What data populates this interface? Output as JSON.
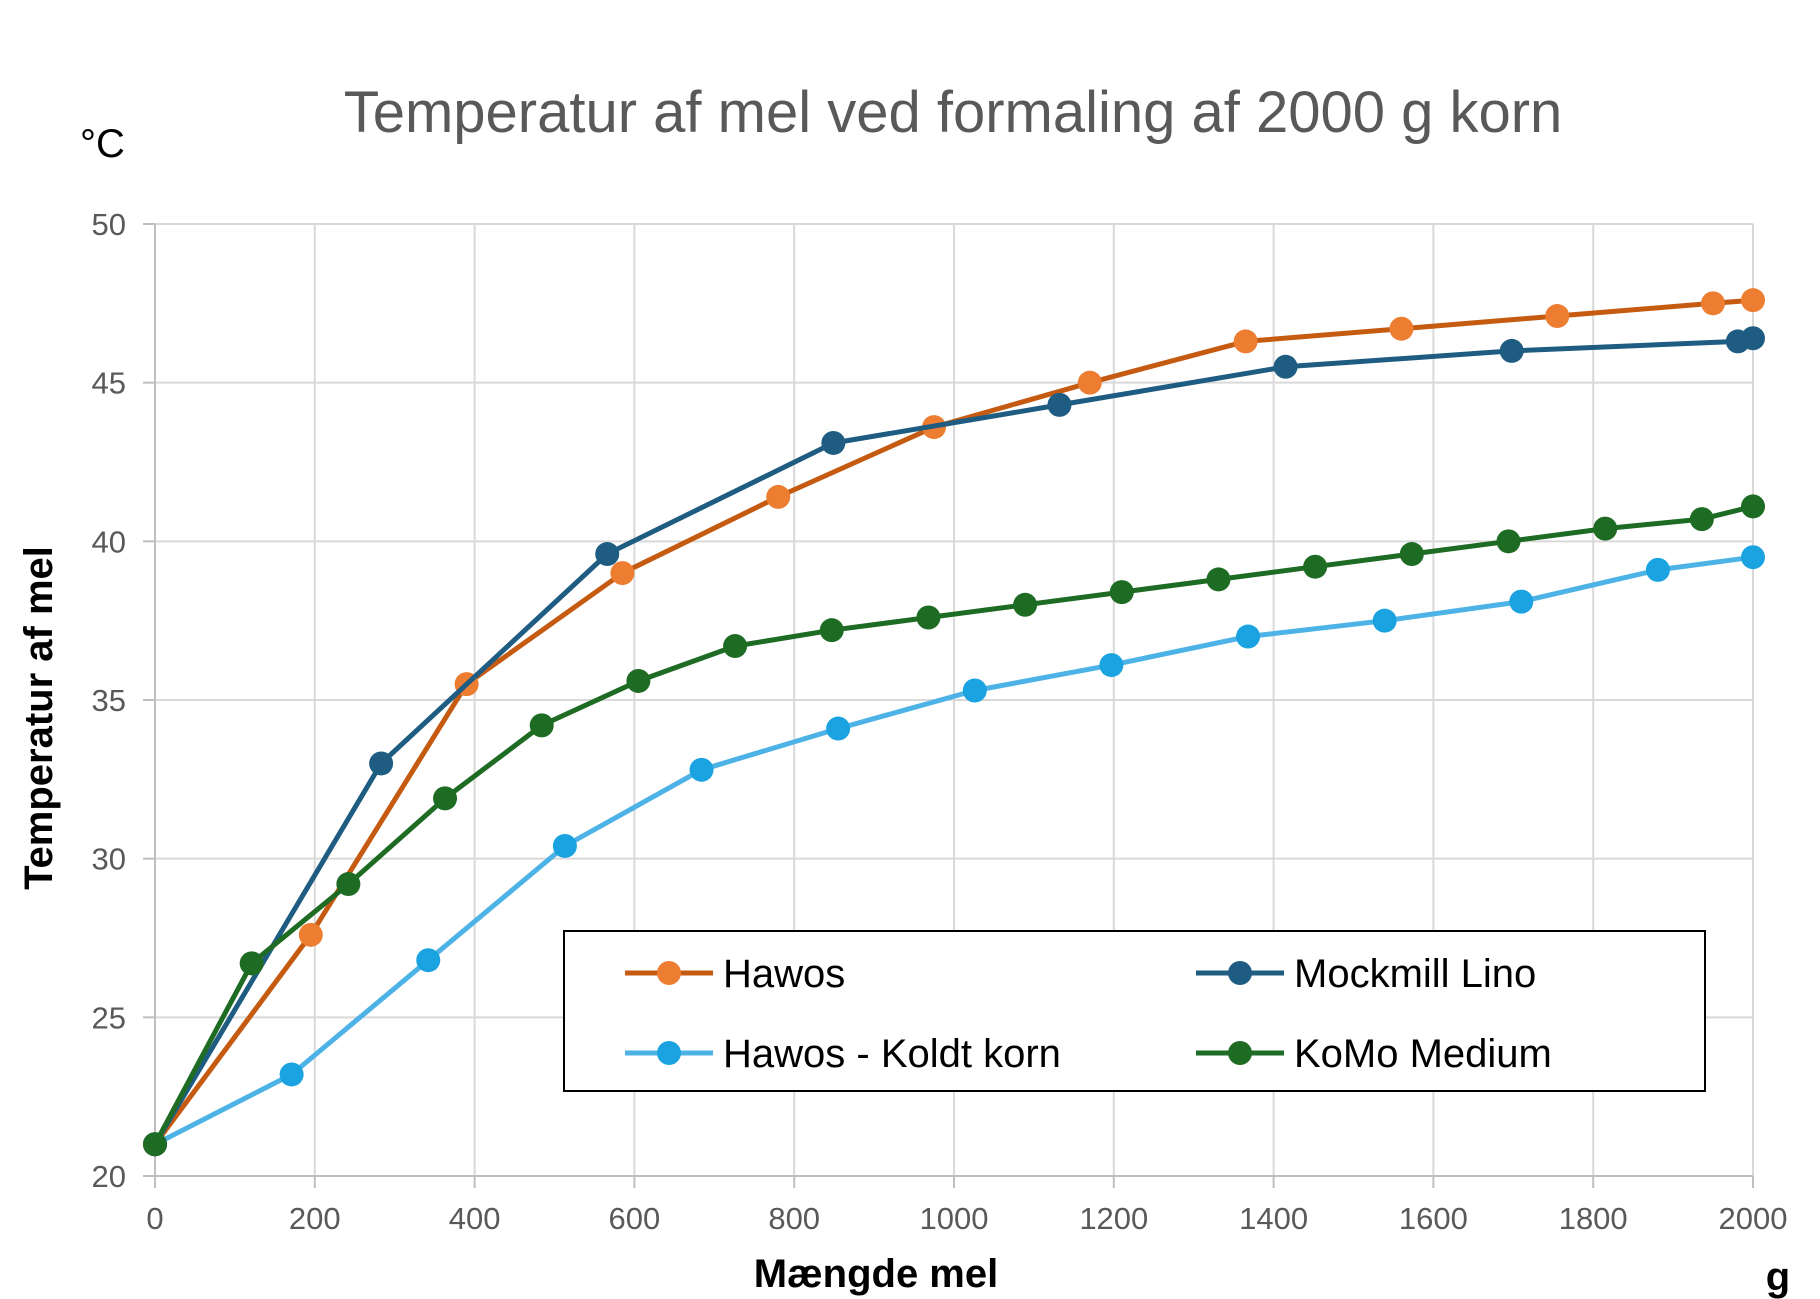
{
  "chart_data": {
    "type": "line",
    "title": "Temperatur af mel ved formaling af 2000 g korn",
    "xlabel": "Mængde mel",
    "ylabel": "Temperatur af mel",
    "x_unit": "g",
    "y_unit": "°C",
    "xlim": [
      0,
      2000
    ],
    "ylim": [
      20,
      50
    ],
    "x_ticks": [
      0,
      200,
      400,
      600,
      800,
      1000,
      1200,
      1400,
      1600,
      1800,
      2000
    ],
    "y_ticks": [
      20,
      25,
      30,
      35,
      40,
      45,
      50
    ],
    "grid": true,
    "legend_position": "bottom-right",
    "series": [
      {
        "name": "Hawos",
        "color": "#c55a11",
        "marker_color": "#ed7d31",
        "points": [
          [
            0,
            21
          ],
          [
            195,
            27.6
          ],
          [
            390,
            35.5
          ],
          [
            585,
            39
          ],
          [
            780,
            41.4
          ],
          [
            975,
            43.6
          ],
          [
            1170,
            45
          ],
          [
            1365,
            46.3
          ],
          [
            1560,
            46.7
          ],
          [
            1755,
            47.1
          ],
          [
            1950,
            47.5
          ],
          [
            2000,
            47.6
          ]
        ]
      },
      {
        "name": "Mockmill Lino",
        "color": "#1f5c82",
        "marker_color": "#1f5c82",
        "points": [
          [
            0,
            21
          ],
          [
            283,
            33
          ],
          [
            566,
            39.6
          ],
          [
            849,
            43.1
          ],
          [
            1132,
            44.3
          ],
          [
            1415,
            45.5
          ],
          [
            1698,
            46
          ],
          [
            1981,
            46.3
          ],
          [
            2000,
            46.4
          ]
        ]
      },
      {
        "name": "Hawos - Koldt korn",
        "color": "#4db3e6",
        "marker_color": "#1aa3e0",
        "points": [
          [
            0,
            21
          ],
          [
            171,
            23.2
          ],
          [
            342,
            26.8
          ],
          [
            513,
            30.4
          ],
          [
            684,
            32.8
          ],
          [
            855,
            34.1
          ],
          [
            1026,
            35.3
          ],
          [
            1197,
            36.1
          ],
          [
            1368,
            37
          ],
          [
            1539,
            37.5
          ],
          [
            1710,
            38.1
          ],
          [
            1881,
            39.1
          ],
          [
            2000,
            39.5
          ]
        ]
      },
      {
        "name": "KoMo Medium",
        "color": "#1e6b24",
        "marker_color": "#1e6b24",
        "points": [
          [
            0,
            21
          ],
          [
            121,
            26.7
          ],
          [
            242,
            29.2
          ],
          [
            363,
            31.9
          ],
          [
            484,
            34.2
          ],
          [
            605,
            35.6
          ],
          [
            726,
            36.7
          ],
          [
            847,
            37.2
          ],
          [
            968,
            37.6
          ],
          [
            1089,
            38
          ],
          [
            1210,
            38.4
          ],
          [
            1331,
            38.8
          ],
          [
            1452,
            39.2
          ],
          [
            1573,
            39.6
          ],
          [
            1694,
            40
          ],
          [
            1815,
            40.4
          ],
          [
            1936,
            40.7
          ],
          [
            2000,
            41.1
          ]
        ]
      }
    ],
    "legend_order": [
      "Hawos",
      "Mockmill Lino",
      "Hawos - Koldt korn",
      "KoMo Medium"
    ]
  }
}
